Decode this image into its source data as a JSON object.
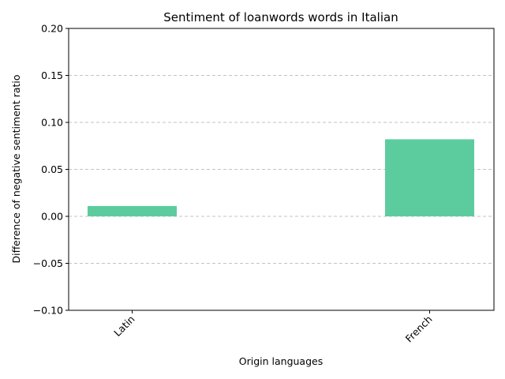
{
  "chart_data": {
    "type": "bar",
    "title": "Sentiment of loanwords words in Italian",
    "xlabel": "Origin languages",
    "ylabel": "Difference of negative sentiment ratio",
    "categories": [
      "Latin",
      "French"
    ],
    "values": [
      0.011,
      0.082
    ],
    "ylim": [
      -0.1,
      0.2
    ],
    "yticks": [
      -0.1,
      -0.05,
      0.0,
      0.05,
      0.1,
      0.15,
      0.2
    ],
    "ytick_labels": [
      "−0.10",
      "−0.05",
      "0.00",
      "0.05",
      "0.10",
      "0.15",
      "0.20"
    ],
    "bar_color": "#5ccc9e",
    "grid": true,
    "grid_axis": "y",
    "legend": "none"
  }
}
